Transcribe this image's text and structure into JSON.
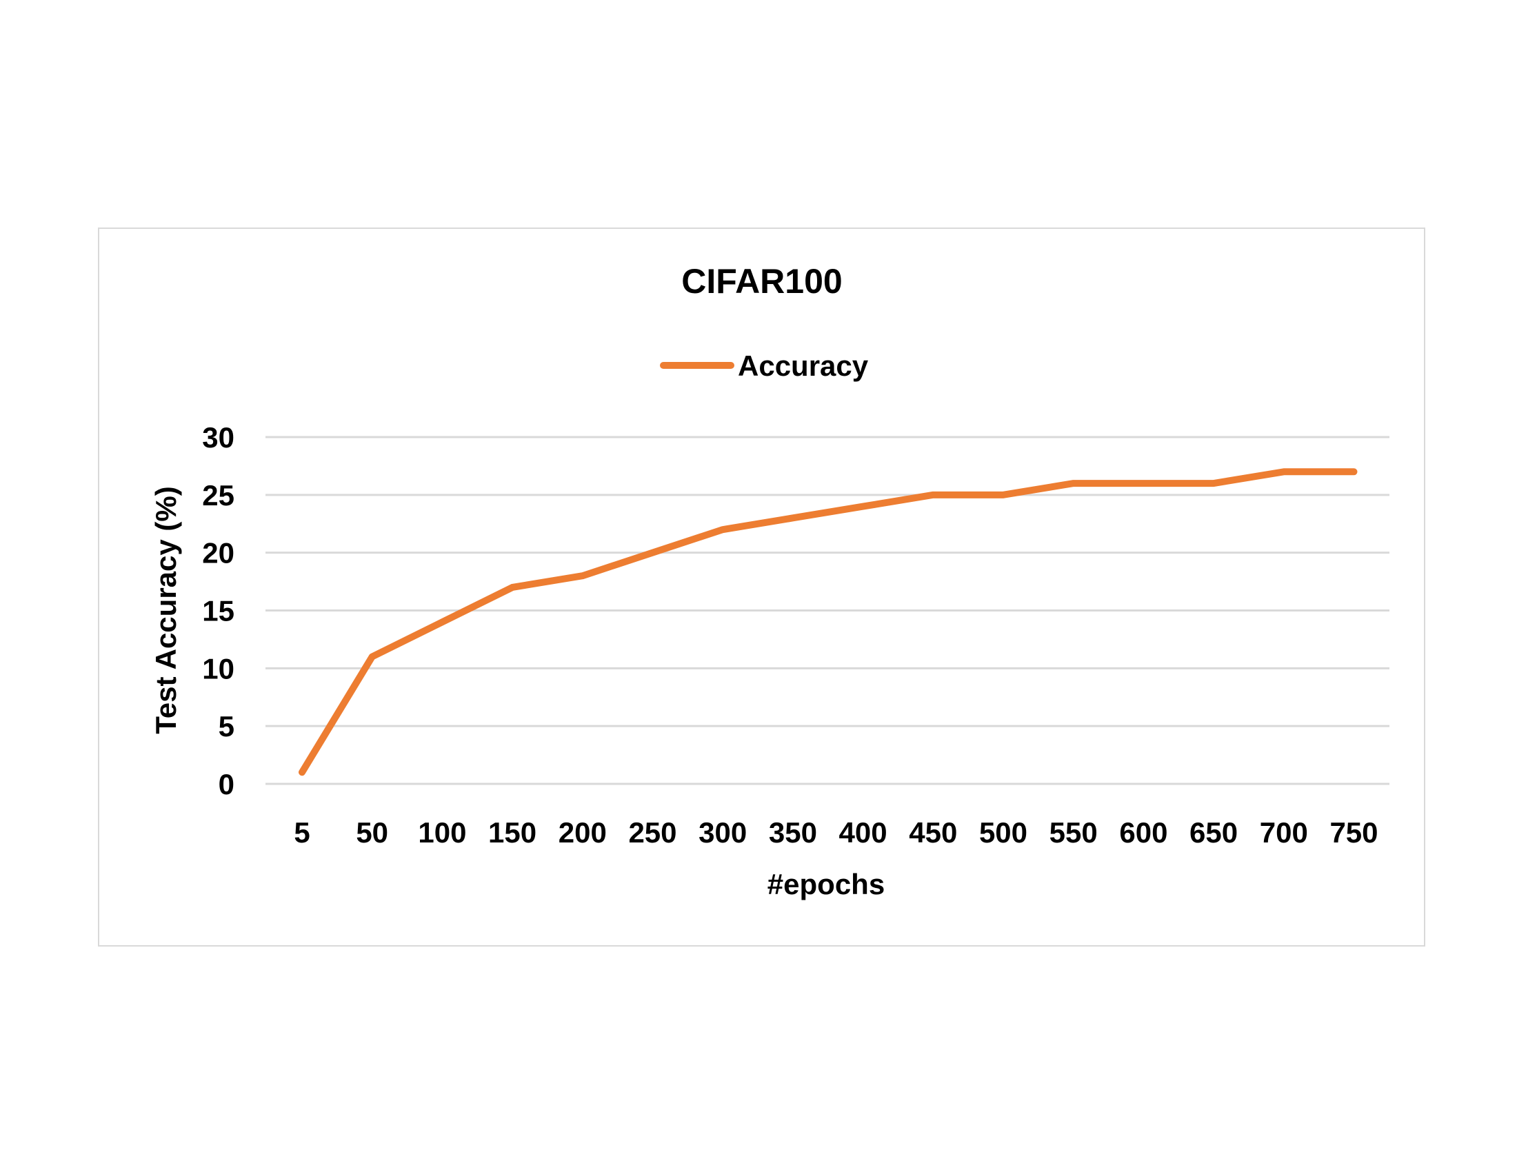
{
  "chart_data": {
    "type": "line",
    "title": "CIFAR100",
    "xlabel": "#epochs",
    "ylabel": "Test Accuracy (%)",
    "categories": [
      "5",
      "50",
      "100",
      "150",
      "200",
      "250",
      "300",
      "350",
      "400",
      "450",
      "500",
      "550",
      "600",
      "650",
      "700",
      "750"
    ],
    "series": [
      {
        "name": "Accuracy",
        "color": "#ed7d31",
        "values": [
          1,
          11,
          14,
          17,
          18,
          20,
          22,
          23,
          24,
          25,
          25,
          26,
          26,
          26,
          27,
          27
        ]
      }
    ],
    "ylim": [
      0,
      30
    ],
    "yticks": [
      0,
      5,
      10,
      15,
      20,
      25,
      30
    ],
    "grid": true,
    "legend_position": "top"
  }
}
